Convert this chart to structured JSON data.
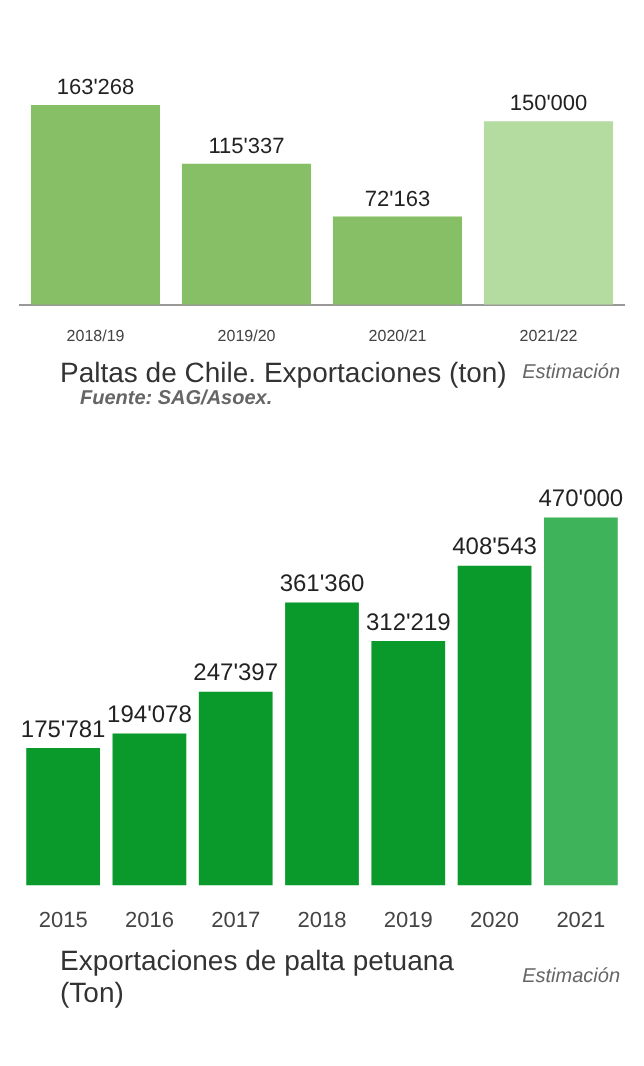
{
  "chart_data": [
    {
      "type": "bar",
      "title": "Paltas de Chile. Exportaciones  (ton)",
      "categories": [
        "2018/19",
        "2019/20",
        "2020/21",
        "2021/22"
      ],
      "values": [
        163268,
        115337,
        72163,
        150000
      ],
      "colors": [
        "#86bf65",
        "#86bf65",
        "#86bf65",
        "#b5dca0"
      ],
      "value_labels": [
        "163'268",
        "115'337",
        "72'163",
        "150'000"
      ],
      "annotations": [
        "Estimación",
        "Fuente: SAG/Asoex."
      ]
    },
    {
      "type": "bar",
      "title": "Exportaciones de palta petuana (Ton)",
      "categories": [
        "2015",
        "2016",
        "2017",
        "2018",
        "2019",
        "2020",
        "2021"
      ],
      "values": [
        175781,
        194078,
        247397,
        361360,
        312219,
        408543,
        470000
      ],
      "colors": [
        "#0a9a2c",
        "#0a9a2c",
        "#0a9a2c",
        "#0a9a2c",
        "#0a9a2c",
        "#0a9a2c",
        "#3fb35a"
      ],
      "value_labels": [
        "175'781",
        "194'078",
        "247'397",
        "361'360",
        "312'219",
        "408'543",
        "470'000"
      ],
      "annotations": [
        "Estimación"
      ]
    }
  ]
}
